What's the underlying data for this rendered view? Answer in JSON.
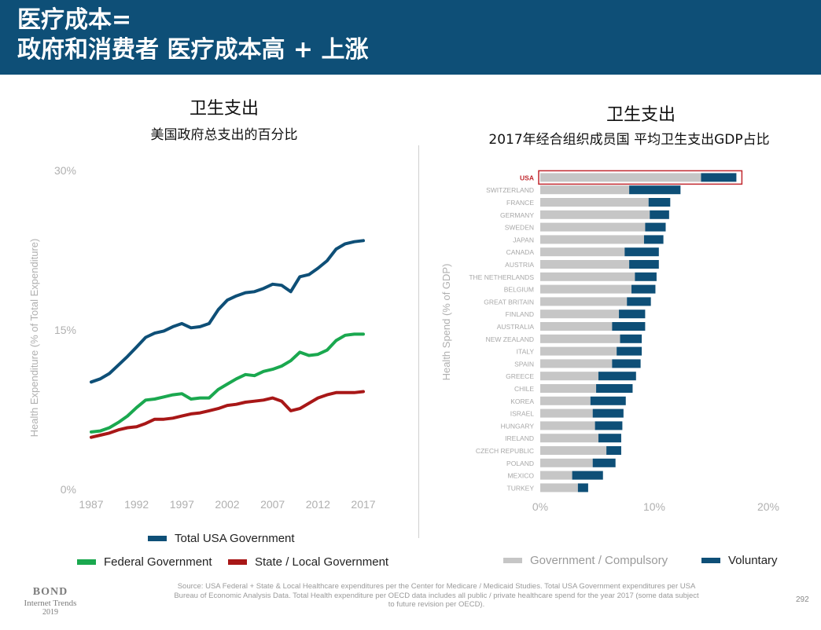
{
  "header": {
    "line1": "医疗成本=",
    "line2": "政府和消费者 医疗成本高 + 上涨",
    "background": "#0e4f77"
  },
  "chart_data": [
    {
      "type": "line",
      "title": "卫生支出",
      "subtitle": "美国政府总支出的百分比",
      "ylabel": "Health Expenditure (% of Total Expenditure)",
      "xlabel": "",
      "ylim": [
        0,
        30
      ],
      "xlim": [
        1987,
        2017
      ],
      "y_ticks": [
        "0%",
        "15%",
        "30%"
      ],
      "x_ticks": [
        "1987",
        "1992",
        "1997",
        "2002",
        "2007",
        "2012",
        "2017"
      ],
      "grid": false,
      "x": [
        1987,
        1988,
        1989,
        1990,
        1991,
        1992,
        1993,
        1994,
        1995,
        1996,
        1997,
        1998,
        1999,
        2000,
        2001,
        2002,
        2003,
        2004,
        2005,
        2006,
        2007,
        2008,
        2009,
        2010,
        2011,
        2012,
        2013,
        2014,
        2015,
        2016,
        2017
      ],
      "series": [
        {
          "name": "Total USA Government",
          "color": "#0e4f77",
          "values": [
            10.1,
            10.4,
            10.9,
            11.7,
            12.5,
            13.4,
            14.3,
            14.7,
            14.9,
            15.3,
            15.6,
            15.2,
            15.3,
            15.6,
            16.9,
            17.8,
            18.2,
            18.5,
            18.6,
            18.9,
            19.3,
            19.2,
            18.6,
            20.0,
            20.2,
            20.8,
            21.5,
            22.6,
            23.1,
            23.3,
            23.4
          ]
        },
        {
          "name": "Federal Government",
          "color": "#1aa84f",
          "values": [
            5.4,
            5.5,
            5.8,
            6.3,
            6.9,
            7.7,
            8.4,
            8.5,
            8.7,
            8.9,
            9.0,
            8.5,
            8.6,
            8.6,
            9.4,
            9.9,
            10.4,
            10.8,
            10.7,
            11.1,
            11.3,
            11.6,
            12.1,
            12.9,
            12.6,
            12.7,
            13.1,
            14.0,
            14.5,
            14.6,
            14.6
          ]
        },
        {
          "name": "State / Local Government",
          "color": "#a81717",
          "values": [
            4.9,
            5.1,
            5.3,
            5.6,
            5.8,
            5.9,
            6.2,
            6.6,
            6.6,
            6.7,
            6.9,
            7.1,
            7.2,
            7.4,
            7.6,
            7.9,
            8.0,
            8.2,
            8.3,
            8.4,
            8.6,
            8.3,
            7.4,
            7.6,
            8.1,
            8.6,
            8.9,
            9.1,
            9.1,
            9.1,
            9.2
          ]
        }
      ],
      "legend": "bottom"
    },
    {
      "type": "bar",
      "orientation": "horizontal",
      "stacked": true,
      "title": "卫生支出",
      "subtitle": "2017年经合组织成员国 平均卫生支出GDP占比",
      "ylabel": "Health Spend (% of GDP)",
      "xlim": [
        0,
        20
      ],
      "x_ticks": [
        "0%",
        "10%",
        "20%"
      ],
      "highlight": "USA",
      "highlight_color": "#c0272d",
      "categories": [
        "USA",
        "SWITZERLAND",
        "FRANCE",
        "GERMANY",
        "SWEDEN",
        "JAPAN",
        "CANADA",
        "AUSTRIA",
        "THE NETHERLANDS",
        "BELGIUM",
        "GREAT BRITAIN",
        "FINLAND",
        "AUSTRALIA",
        "NEW ZEALAND",
        "ITALY",
        "SPAIN",
        "GREECE",
        "CHILE",
        "KOREA",
        "ISRAEL",
        "HUNGARY",
        "IRELAND",
        "CZECH REPUBLIC",
        "POLAND",
        "MEXICO",
        "TURKEY"
      ],
      "series": [
        {
          "name": "Government / Compulsory",
          "color": "#c6c6c6",
          "values": [
            14.1,
            7.8,
            9.5,
            9.6,
            9.2,
            9.1,
            7.4,
            7.8,
            8.3,
            8.0,
            7.6,
            6.9,
            6.3,
            7.0,
            6.7,
            6.3,
            5.1,
            4.9,
            4.4,
            4.6,
            4.8,
            5.1,
            5.8,
            4.6,
            2.8,
            3.3
          ]
        },
        {
          "name": "Voluntary",
          "color": "#0e4f77",
          "values": [
            3.1,
            4.5,
            1.9,
            1.7,
            1.8,
            1.7,
            3.0,
            2.6,
            1.9,
            2.1,
            2.1,
            2.3,
            2.9,
            1.9,
            2.2,
            2.5,
            3.3,
            3.2,
            3.1,
            2.7,
            2.4,
            2.0,
            1.3,
            2.0,
            2.7,
            0.9
          ]
        }
      ],
      "legend": "bottom"
    }
  ],
  "footer": {
    "source": "Source: USA Federal + State & Local Healthcare expenditures per the Center for Medicare / Medicaid Studies.  Total USA Government expenditures per USA Bureau of Economic Analysis Data.  Total Health expenditure per OECD data includes all public / private healthcare spend for the year 2017 (some data subject to future revision per OECD).",
    "page": "292",
    "bond": "BOND",
    "bond_sub": "Internet Trends",
    "bond_year": "2019"
  }
}
